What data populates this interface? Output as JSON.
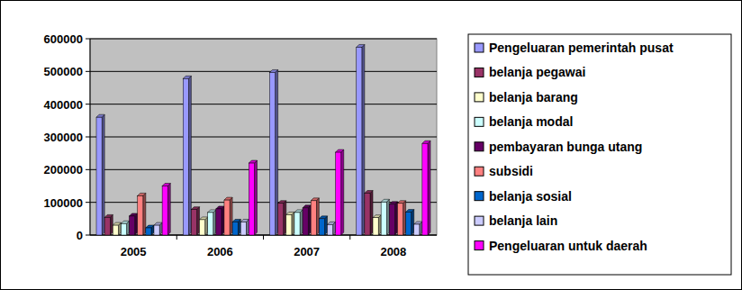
{
  "chart_data": {
    "type": "bar",
    "categories": [
      "2005",
      "2006",
      "2007",
      "2008"
    ],
    "series": [
      {
        "name": "Pengeluaran pemerintah pusat",
        "color": "#9999ff",
        "values": [
          360000,
          478000,
          497000,
          574000
        ]
      },
      {
        "name": "belanja pegawai",
        "color": "#993366",
        "values": [
          54000,
          78000,
          97000,
          128000
        ]
      },
      {
        "name": "belanja barang",
        "color": "#ffffcc",
        "values": [
          30000,
          47000,
          62000,
          53000
        ]
      },
      {
        "name": "belanja modal",
        "color": "#ccffff",
        "values": [
          35000,
          69000,
          69000,
          101000
        ]
      },
      {
        "name": "pembayaran bunga utang",
        "color": "#660066",
        "values": [
          58000,
          80000,
          83000,
          94000
        ]
      },
      {
        "name": "subsidi",
        "color": "#ff8080",
        "values": [
          120000,
          107000,
          105000,
          97000
        ]
      },
      {
        "name": "belanja sosial",
        "color": "#0066cc",
        "values": [
          22000,
          40000,
          50000,
          70000
        ]
      },
      {
        "name": "belanja lain",
        "color": "#ccccff",
        "values": [
          30000,
          40000,
          32000,
          33000
        ]
      },
      {
        "name": "Pengeluaran untuk daerah",
        "color": "#ff00ff",
        "values": [
          150000,
          220000,
          253000,
          280000
        ]
      }
    ],
    "ylim": [
      0,
      600000
    ],
    "yticks": [
      0,
      100000,
      200000,
      300000,
      400000,
      500000,
      600000
    ],
    "grid": true,
    "legend": "right"
  }
}
